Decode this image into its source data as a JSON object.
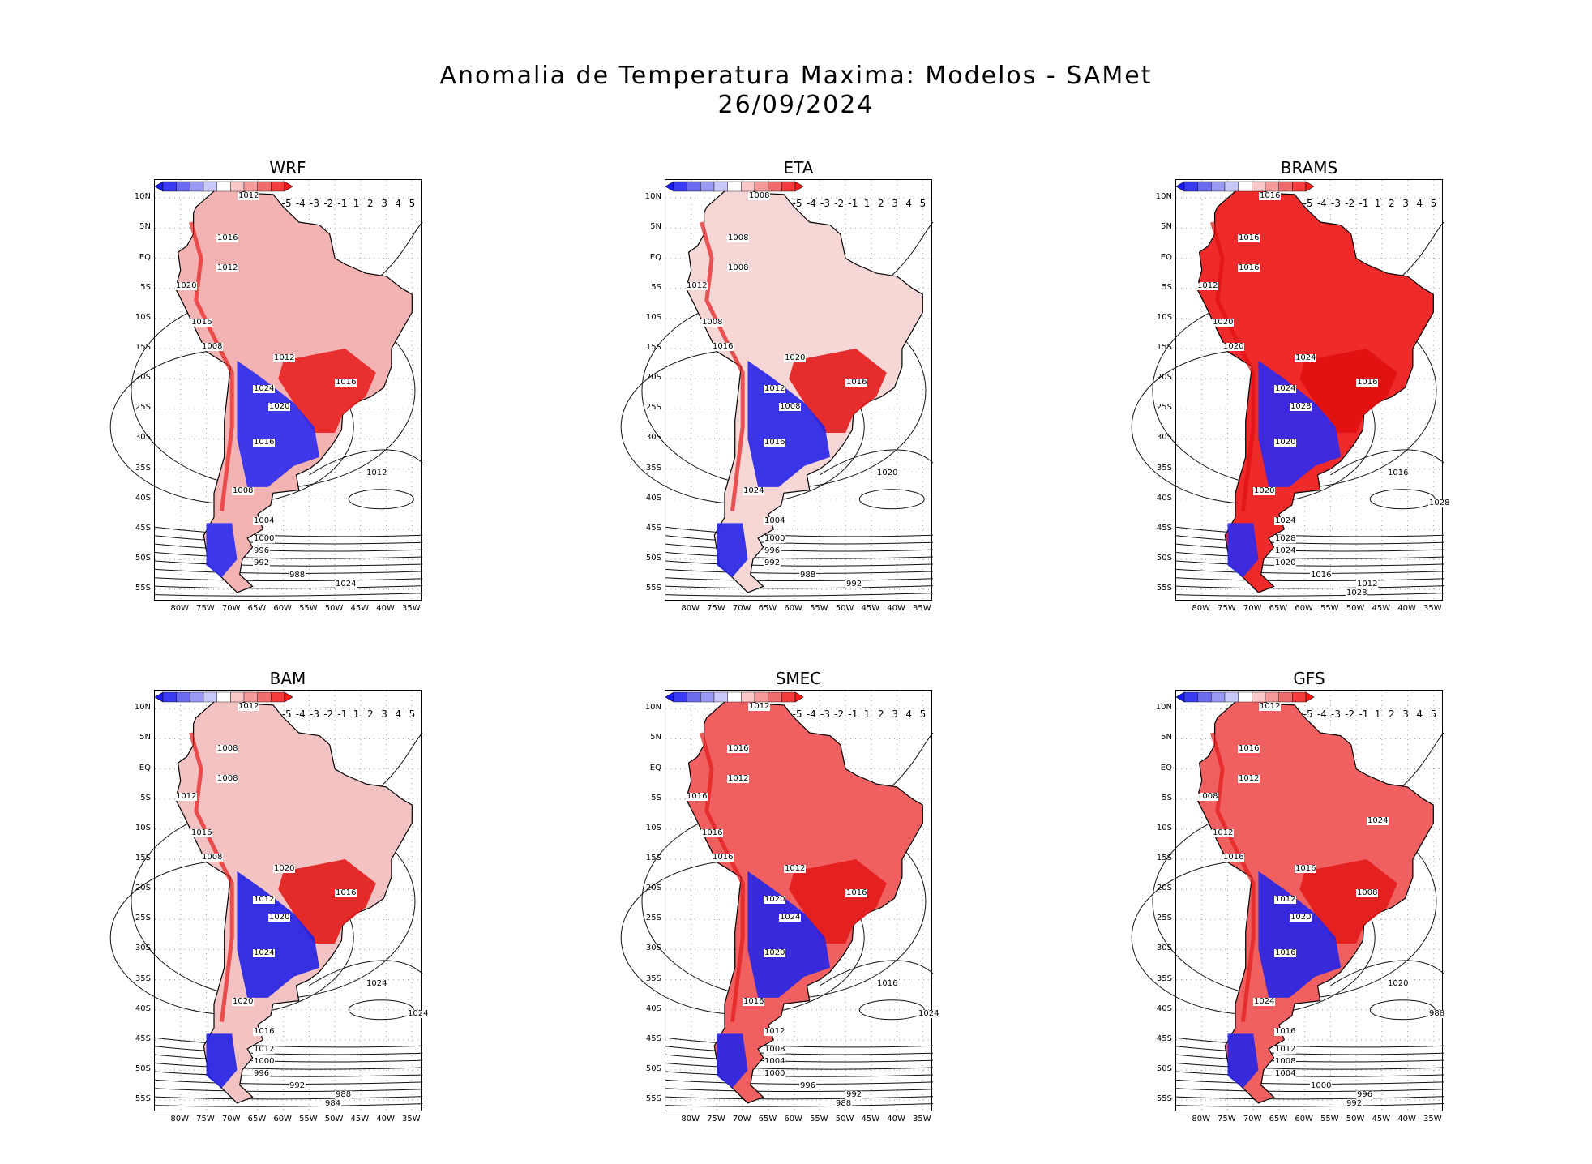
{
  "title_line1": "Anomalia de Temperatura Maxima: Modelos - SAMet",
  "title_line2": "26/09/2024",
  "colorbar": {
    "labels": [
      "-5",
      "-4",
      "-3",
      "-2",
      "-1",
      "1",
      "2",
      "3",
      "4",
      "5"
    ],
    "colors": [
      "#1a1aff",
      "#3b3bf5",
      "#6b6bf0",
      "#9a9af5",
      "#c8c8fa",
      "#ffffff",
      "#fac8c8",
      "#f59a9a",
      "#f06b6b",
      "#f53b3b",
      "#ff1a1a"
    ]
  },
  "lat_labels": [
    "10N",
    "5N",
    "EQ",
    "5S",
    "10S",
    "15S",
    "20S",
    "25S",
    "30S",
    "35S",
    "40S",
    "45S",
    "50S",
    "55S"
  ],
  "lon_labels": [
    "80W",
    "75W",
    "70W",
    "65W",
    "60W",
    "55W",
    "50W",
    "45W",
    "40W",
    "35W"
  ],
  "panels": [
    {
      "name": "WRF",
      "isobars": [
        "1012",
        "1016",
        "1012",
        "1020",
        "1016",
        "1008",
        "1012",
        "1016",
        "1024",
        "1020",
        "1016",
        "1012",
        "1008",
        "1004",
        "1000",
        "996",
        "992",
        "988",
        "1024"
      ]
    },
    {
      "name": "ETA",
      "isobars": [
        "1008",
        "1008",
        "1008",
        "1012",
        "1008",
        "1016",
        "1020",
        "1016",
        "1012",
        "1008",
        "1016",
        "1020",
        "1024",
        "1004",
        "1000",
        "996",
        "992",
        "988",
        "992"
      ]
    },
    {
      "name": "BRAMS",
      "isobars": [
        "1016",
        "1016",
        "1016",
        "1012",
        "1020",
        "1020",
        "1024",
        "1016",
        "1024",
        "1028",
        "1020",
        "1016",
        "1020",
        "1024",
        "1028",
        "1024",
        "1020",
        "1016",
        "1012",
        "1028",
        "1028"
      ]
    },
    {
      "name": "BAM",
      "isobars": [
        "1012",
        "1008",
        "1008",
        "1012",
        "1016",
        "1008",
        "1020",
        "1016",
        "1012",
        "1020",
        "1024",
        "1024",
        "1020",
        "1016",
        "1012",
        "1000",
        "996",
        "992",
        "988",
        "984",
        "1024"
      ]
    },
    {
      "name": "SMEC",
      "isobars": [
        "1012",
        "1016",
        "1012",
        "1016",
        "1016",
        "1016",
        "1012",
        "1016",
        "1020",
        "1024",
        "1020",
        "1016",
        "1016",
        "1012",
        "1008",
        "1004",
        "1000",
        "996",
        "992",
        "988",
        "1024"
      ]
    },
    {
      "name": "GFS",
      "isobars": [
        "1012",
        "1016",
        "1012",
        "1008",
        "1012",
        "1016",
        "1016",
        "1008",
        "1012",
        "1020",
        "1016",
        "1020",
        "1024",
        "1016",
        "1012",
        "1008",
        "1004",
        "1000",
        "996",
        "992",
        "988",
        "1024"
      ]
    }
  ]
}
